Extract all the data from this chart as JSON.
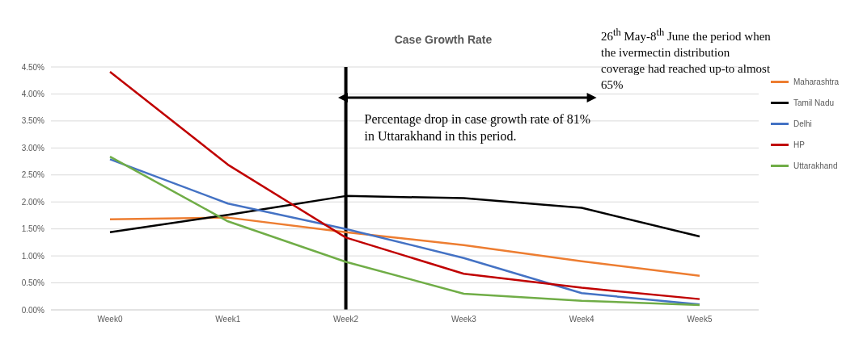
{
  "chart_data": {
    "type": "line",
    "title": "Case Growth Rate",
    "categories": [
      "Week0",
      "Week1",
      "Week2",
      "Week3",
      "Week4",
      "Week5"
    ],
    "series": [
      {
        "name": "Maharashtra",
        "color": "#ed7d31",
        "values": [
          1.68,
          1.71,
          1.44,
          1.2,
          0.9,
          0.63
        ]
      },
      {
        "name": "Tamil Nadu",
        "color": "#000000",
        "values": [
          1.44,
          1.76,
          2.11,
          2.07,
          1.89,
          1.36
        ]
      },
      {
        "name": "Delhi",
        "color": "#4472c4",
        "values": [
          2.79,
          1.97,
          1.5,
          0.96,
          0.31,
          0.1
        ]
      },
      {
        "name": "HP",
        "color": "#c00000",
        "values": [
          4.41,
          2.69,
          1.34,
          0.67,
          0.41,
          0.2
        ]
      },
      {
        "name": "Uttarakhand",
        "color": "#70ad47",
        "values": [
          2.84,
          1.64,
          0.89,
          0.3,
          0.17,
          0.09
        ]
      }
    ],
    "ylim": [
      0,
      4.5
    ],
    "yticks": [
      {
        "value": 0,
        "label": "0.00%"
      },
      {
        "value": 0.5,
        "label": "0.50%"
      },
      {
        "value": 1,
        "label": "1.00%"
      },
      {
        "value": 1.5,
        "label": "1.50%"
      },
      {
        "value": 2,
        "label": "2.00%"
      },
      {
        "value": 2.5,
        "label": "2.50%"
      },
      {
        "value": 3,
        "label": "3.00%"
      },
      {
        "value": 3.5,
        "label": "3.50%"
      },
      {
        "value": 4,
        "label": "4.00%"
      },
      {
        "value": 4.5,
        "label": "4.50%"
      }
    ],
    "grid": "y",
    "legend": "right",
    "marker": "none",
    "line_style": "solid",
    "ref_lines": [
      {
        "axis": "x",
        "value": "Week2",
        "color": "#000000"
      }
    ],
    "annotations": [
      "26$^{th}$ May-8$^{th}$ June the period when the ivermectin distribution coverage had reached up-to almost 65%",
      {
        "text": "Percentage drop in case growth rate of 81% in Uttarakhand in this period.",
        "x": "Week2",
        "y": 3.93
      }
    ]
  }
}
